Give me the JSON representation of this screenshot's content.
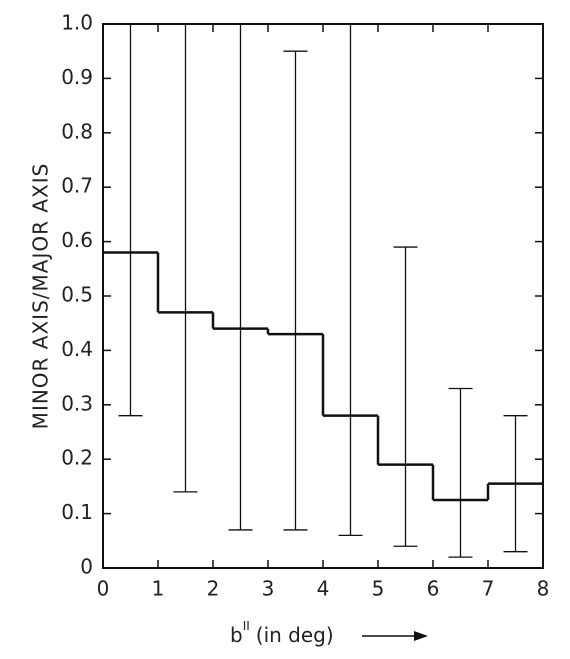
{
  "chart_data": {
    "type": "histogram",
    "ylabel": "MINOR AXIS/MAJOR AXIS",
    "xlabel_parts": [
      "b",
      "II",
      "(in deg)"
    ],
    "bins": [
      0,
      1,
      2,
      3,
      4,
      5,
      6,
      7,
      8
    ],
    "values": [
      0.58,
      0.47,
      0.44,
      0.43,
      0.28,
      0.19,
      0.125,
      0.155
    ],
    "error_low": [
      0.28,
      0.14,
      0.07,
      0.07,
      0.06,
      0.04,
      0.02,
      0.03
    ],
    "error_high": [
      1.0,
      1.0,
      1.0,
      0.95,
      1.0,
      0.59,
      0.33,
      0.28
    ],
    "color": "#111111",
    "xlim": [
      0,
      8
    ],
    "ylim": [
      0,
      1.0
    ],
    "xticks": [
      0,
      1,
      2,
      3,
      4,
      5,
      6,
      7,
      8
    ],
    "yticks": [
      0,
      0.1,
      0.2,
      0.3,
      0.4,
      0.5,
      0.6,
      0.7,
      0.8,
      0.9,
      {
        "value": 1.0,
        "label": "1.0"
      }
    ],
    "grid": false
  }
}
